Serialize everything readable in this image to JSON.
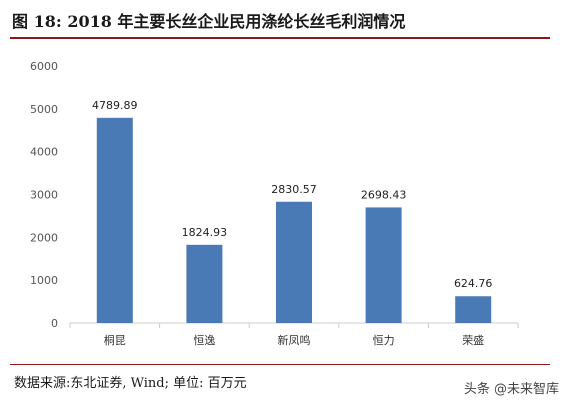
{
  "figure": {
    "title": "图 18:  2018 年主要长丝企业民用涤纶长丝毛利润情况",
    "source": "数据来源:东北证券, Wind; 单位: 百万元",
    "watermark": "头条 @未来智库"
  },
  "colors": {
    "bar": "#4a7ab5",
    "accent_rule": "#8b1a1a",
    "axis": "#cccccc"
  },
  "chart_data": {
    "type": "bar",
    "title": "",
    "xlabel": "",
    "ylabel": "",
    "categories": [
      "桐昆",
      "恒逸",
      "新凤鸣",
      "恒力",
      "荣盛"
    ],
    "values": [
      4789.89,
      1824.93,
      2830.57,
      2698.43,
      624.76
    ],
    "data_labels": [
      "4789.89",
      "1824.93",
      "2830.57",
      "2698.43",
      "624.76"
    ],
    "ylim": [
      0,
      6000
    ],
    "yticks": [
      0,
      1000,
      2000,
      3000,
      4000,
      5000,
      6000
    ],
    "grid": false,
    "legend": "none"
  }
}
